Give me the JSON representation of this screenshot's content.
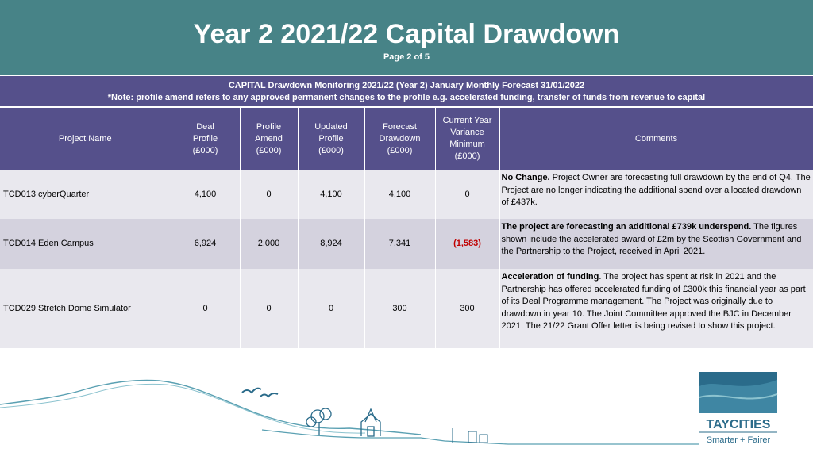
{
  "header": {
    "title": "Year 2 2021/22 Capital Drawdown",
    "page": "Page 2 of 5"
  },
  "note": {
    "line1": "CAPITAL Drawdown Monitoring 2021/22 (Year 2) January Monthly Forecast 31/01/2022",
    "line2": "*Note: profile amend refers to any approved permanent changes to the profile e.g. accelerated funding, transfer of funds from revenue to capital"
  },
  "columns": {
    "project": "Project Name",
    "deal": [
      "Deal",
      "Profile",
      "(£000)"
    ],
    "amend": [
      "Profile",
      "Amend",
      "(£000)"
    ],
    "updated": [
      "Updated",
      "Profile",
      "(£000)"
    ],
    "forecast": [
      "Forecast",
      "Drawdown",
      "(£000)"
    ],
    "variance": [
      "Current Year",
      "Variance",
      "Minimum",
      "(£000)"
    ],
    "comments": "Comments"
  },
  "rows": [
    {
      "name": "TCD013 cyberQuarter",
      "deal": "4,100",
      "amend": "0",
      "updated": "4,100",
      "forecast": "4,100",
      "variance": "0",
      "comment_bold": "No Change.",
      "comment_text": " Project Owner are forecasting full  drawdown by the end of Q4. The Project are no longer indicating the additional spend over allocated drawdown of £437k."
    },
    {
      "name": "TCD014 Eden Campus",
      "deal": "6,924",
      "amend": "2,000",
      "updated": "8,924",
      "forecast": "7,341",
      "variance": "(1,583)",
      "comment_bold": "The project are forecasting an additional £739k underspend.",
      "comment_text": " The figures shown include the accelerated award of £2m by the Scottish Government and the Partnership to the Project, received in April 2021."
    },
    {
      "name": "TCD029 Stretch Dome Simulator",
      "deal": "0",
      "amend": "0",
      "updated": "0",
      "forecast": "300",
      "variance": "300",
      "comment_bold": "Acceleration of funding",
      "comment_text": ". The project has spent at risk in 2021 and the Partnership has offered accelerated funding of £300k this financial year as part of its Deal Programme management. The Project was originally due to drawdown in year 10. The Joint Committee approved the BJC in December 2021. The 21/22 Grant Offer letter is being revised to show this project."
    }
  ],
  "logo": {
    "line1": "TAYCITIES",
    "line2": "Smarter + Fairer",
    "color": "#2a6b8a",
    "accent": "#5aa0b2"
  },
  "colors": {
    "header_bg": "#478387",
    "table_header_bg": "#55508b",
    "row_light": "#e9e8ee",
    "row_dark": "#d4d2de",
    "negative": "#c00000"
  }
}
